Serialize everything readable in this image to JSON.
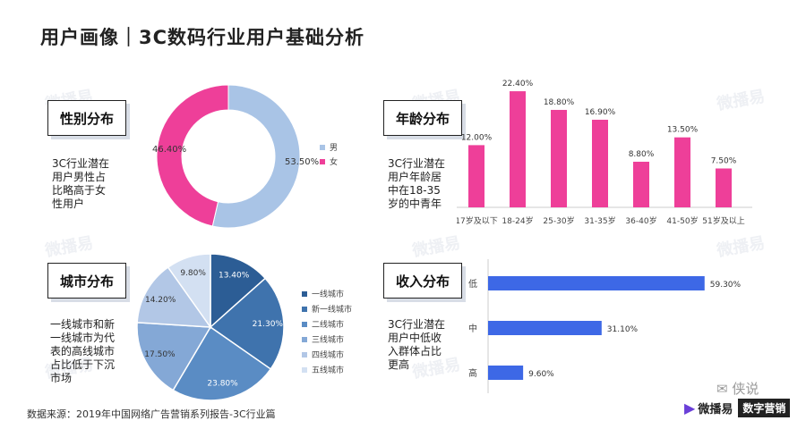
{
  "title": "用户画像｜3C数码行业用户基础分析",
  "footer": "数据来源：2019年中国网络广告营销系列报告-3C行业篇",
  "watermark": "微播易",
  "brand": {
    "name": "微播易",
    "tag": "数字营销",
    "wechat": "侠说"
  },
  "panels": {
    "gender": {
      "label": "性别分布",
      "note": "3C行业潜在\n用户男性占\n比略高于女\n性用户"
    },
    "age": {
      "label": "年龄分布",
      "note": "3C行业潜在\n用户年龄居\n中在18-35\n岁的中青年"
    },
    "city": {
      "label": "城市分布",
      "note": "一线城市和新\n一线城市为代\n表的高线城市\n占比低于下沉\n市场"
    },
    "income": {
      "label": "收入分布",
      "note": "3C行业潜在\n用户中低收\n入群体占比\n更高"
    }
  },
  "chart_data": [
    {
      "id": "gender",
      "type": "donut",
      "categories": [
        "男",
        "女"
      ],
      "values": [
        53.5,
        46.4
      ],
      "labels": [
        "53.50%",
        "46.40%"
      ],
      "colors": [
        "#a9c4e6",
        "#ee3f99"
      ],
      "legend": "right"
    },
    {
      "id": "age",
      "type": "bar",
      "categories": [
        "17岁及以下",
        "18-24岁",
        "25-30岁",
        "31-35岁",
        "36-40岁",
        "41-50岁",
        "51岁及以上"
      ],
      "values": [
        12.0,
        22.4,
        18.8,
        16.9,
        8.8,
        13.5,
        7.5
      ],
      "labels": [
        "12.00%",
        "22.40%",
        "18.80%",
        "16.90%",
        "8.80%",
        "13.50%",
        "7.50%"
      ],
      "color": "#ee3f99",
      "ylim": [
        0,
        25
      ]
    },
    {
      "id": "city",
      "type": "pie",
      "categories": [
        "一线城市",
        "新一线城市",
        "二线城市",
        "三线城市",
        "四线城市",
        "五线城市"
      ],
      "values": [
        13.4,
        21.3,
        23.8,
        17.5,
        14.2,
        9.8
      ],
      "labels": [
        "13.40%",
        "21.30%",
        "23.80%",
        "17.50%",
        "14.20%",
        "9.80%"
      ],
      "colors": [
        "#2c5d95",
        "#3f73ad",
        "#5a8cc4",
        "#84a8d6",
        "#b2c7e6",
        "#d3e0f2"
      ],
      "legend": "right"
    },
    {
      "id": "income",
      "type": "bar",
      "orientation": "horizontal",
      "categories": [
        "低",
        "中",
        "高"
      ],
      "values": [
        59.3,
        31.1,
        9.6
      ],
      "labels": [
        "59.30%",
        "31.10%",
        "9.60%"
      ],
      "color": "#3d68e6",
      "xlim": [
        0,
        65
      ]
    }
  ]
}
